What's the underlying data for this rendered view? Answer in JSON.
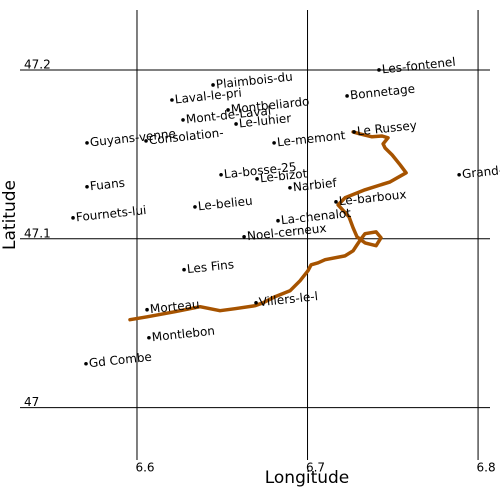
{
  "chart_data": {
    "type": "map",
    "x_label": "Longitude",
    "y_label": "Latitude",
    "xlim": [
      6.5314,
      6.807
    ],
    "ylim": [
      46.969,
      47.2355
    ],
    "xticks": [
      6.6,
      6.7,
      6.8
    ],
    "yticks": [
      47,
      47.1,
      47.2
    ],
    "grid": true,
    "places": {
      "color": "#000000",
      "labels": [
        "Plaimbois-du",
        "Les-fontenel",
        "Laval-le-pri",
        "Bonnetage",
        "Mont-de-Laval",
        "Montbeliardo",
        "Le-luhier",
        "Guyans-venne",
        "Consolation-",
        "Le-memont",
        "Le Russey",
        "La-bosse-25",
        "Le-bizot",
        "Narbief",
        "Grand-",
        "Fuans",
        "Le-belieu",
        "Le-barboux",
        "Fournets-lui",
        "La-chenalot",
        "Noel-cerneux",
        "Les Fins",
        "Villers-le-l",
        "Morteau",
        "Montlebon",
        "Gd Combe"
      ],
      "x": [
        6.6446,
        6.7419,
        6.6205,
        6.7232,
        6.627,
        6.6534,
        6.6581,
        6.5707,
        6.6053,
        6.6804,
        6.7273,
        6.6493,
        6.6704,
        6.6897,
        6.7889,
        6.5707,
        6.634,
        6.7167,
        6.5625,
        6.6827,
        6.6628,
        6.6276,
        6.6698,
        6.6059,
        6.607,
        6.5701
      ],
      "y": [
        47.1911,
        47.2,
        47.1822,
        47.1846,
        47.1704,
        47.1763,
        47.168,
        47.1568,
        47.158,
        47.1568,
        47.1633,
        47.1379,
        47.1355,
        47.1302,
        47.1379,
        47.1308,
        47.1189,
        47.1219,
        47.1124,
        47.1107,
        47.1012,
        47.0817,
        47.0621,
        47.058,
        47.0414,
        47.026
      ]
    },
    "track": {
      "color": "#a65300",
      "x": [
        6.5959,
        6.6059,
        6.6223,
        6.637,
        6.6487,
        6.6575,
        6.6692,
        6.6739,
        6.6809,
        6.6897,
        6.6956,
        6.7003,
        6.7021,
        6.7062,
        6.7103,
        6.722,
        6.7267,
        6.729,
        6.7314,
        6.7337,
        6.7402,
        6.7431,
        6.7402,
        6.7337,
        6.729,
        6.7267,
        6.7243,
        6.7179,
        6.722,
        6.7337,
        6.7484,
        6.7578,
        6.7543,
        6.7496,
        6.7455,
        6.7443,
        6.7472,
        6.7437,
        6.7378,
        6.7308,
        6.7267
      ],
      "y": [
        47.0521,
        47.0538,
        47.0568,
        47.0598,
        47.0574,
        47.0586,
        47.0604,
        47.0621,
        47.0657,
        47.0692,
        47.0751,
        47.0811,
        47.0846,
        47.0858,
        47.0876,
        47.0899,
        47.0929,
        47.0964,
        47.1,
        47.103,
        47.1041,
        47.1006,
        47.0959,
        47.0976,
        47.1012,
        47.1065,
        47.113,
        47.1201,
        47.1243,
        47.129,
        47.1337,
        47.1391,
        47.1438,
        47.1497,
        47.1538,
        47.1562,
        47.1598,
        47.1609,
        47.1604,
        47.1621,
        47.1633
      ]
    }
  }
}
